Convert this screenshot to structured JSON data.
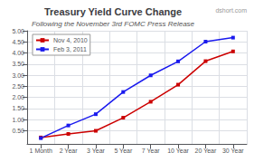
{
  "chart_data": {
    "type": "line",
    "title": "Treasury Yield Curve Change",
    "subtitle": "Following the November 3rd FOMC Press Release",
    "annotations": [
      "dshort.com"
    ],
    "categories": [
      "1 Month",
      "2 Year",
      "3 Year",
      "5 Year",
      "7 Year",
      "10 Year",
      "20 Year",
      "30 Year"
    ],
    "series": [
      {
        "name": "Nov 4, 2010",
        "color": "#cc0000",
        "values": [
          0.19,
          0.35,
          0.49,
          1.08,
          1.8,
          2.57,
          3.63,
          4.07
        ]
      },
      {
        "name": "Feb 3, 2011",
        "color": "#1a1aee",
        "values": [
          0.16,
          0.73,
          1.24,
          2.24,
          2.99,
          3.62,
          4.51,
          4.69
        ]
      }
    ],
    "ylim": [
      -0.1,
      5.0
    ],
    "yticks": [
      {
        "value": 0.5,
        "label": "0.50"
      },
      {
        "value": 1.0,
        "label": "1.00"
      },
      {
        "value": 1.5,
        "label": "1.50"
      },
      {
        "value": 2.0,
        "label": "2.00"
      },
      {
        "value": 2.5,
        "label": "2.50"
      },
      {
        "value": 3.0,
        "label": "3.00"
      },
      {
        "value": 3.5,
        "label": "3.50"
      },
      {
        "value": 4.0,
        "label": "4.00"
      },
      {
        "value": 4.5,
        "label": "4.50"
      },
      {
        "value": 5.0,
        "label": "5.00"
      }
    ],
    "grid": true,
    "legend": "upper left",
    "marker": "square"
  }
}
